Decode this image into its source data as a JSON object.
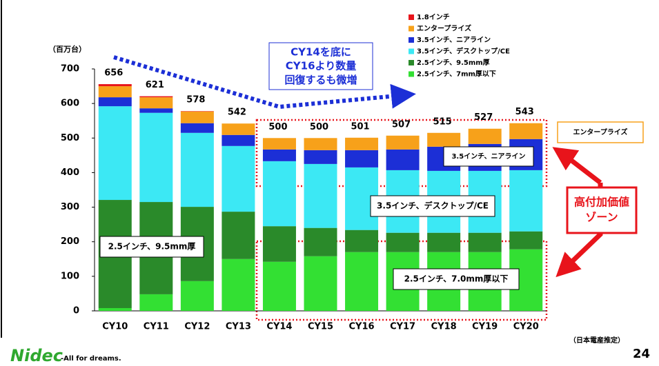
{
  "chart_data": {
    "type": "bar",
    "stacked": true,
    "y_label": "（百万台）",
    "categories": [
      "CY10",
      "CY11",
      "CY12",
      "CY13",
      "CY14",
      "CY15",
      "CY16",
      "CY17",
      "CY18",
      "CY19",
      "CY20"
    ],
    "series": [
      {
        "name": "2.5インチ、7mm厚以下",
        "color": "#33e033",
        "values": [
          8,
          48,
          86,
          150,
          142,
          158,
          170,
          170,
          170,
          170,
          178
        ]
      },
      {
        "name": "2.5インチ、9.5mm厚",
        "color": "#2a8a2a",
        "values": [
          313,
          267,
          215,
          137,
          103,
          82,
          64,
          56,
          56,
          56,
          52
        ]
      },
      {
        "name": "3.5インチ、デスクトップ/CE",
        "color": "#3ce8f4",
        "values": [
          271,
          258,
          214,
          190,
          188,
          185,
          181,
          181,
          179,
          179,
          177
        ]
      },
      {
        "name": "3.5インチ、ニアライン",
        "color": "#1c2fd6",
        "values": [
          26,
          13,
          28,
          32,
          34,
          40,
          50,
          60,
          70,
          78,
          90
        ]
      },
      {
        "name": "エンタープライズ",
        "color": "#f7a11a",
        "values": [
          32,
          32,
          34,
          33,
          33,
          35,
          36,
          40,
          40,
          44,
          46
        ]
      },
      {
        "name": "1.8インチ",
        "color": "#e8141b",
        "values": [
          6,
          3,
          1,
          0,
          0,
          0,
          0,
          0,
          0,
          0,
          0
        ]
      }
    ],
    "totals": [
      656,
      621,
      578,
      542,
      500,
      500,
      501,
      507,
      515,
      527,
      543
    ],
    "ylim": [
      0,
      700
    ],
    "yticks": [
      0,
      100,
      200,
      300,
      400,
      500,
      600,
      700
    ],
    "annotations": [
      {
        "lines": [
          "CY14を底に",
          "CY16より数量",
          "回復するも微増"
        ]
      },
      {
        "lines": [
          "エンタープライズ"
        ]
      },
      {
        "lines": [
          "3.5インチ、ニアライン"
        ]
      },
      {
        "lines": [
          "3.5インチ、デスクトップ/CE"
        ]
      },
      {
        "lines": [
          "2.5インチ、9.5mm厚"
        ]
      },
      {
        "lines": [
          "2.5インチ、7.0mm厚以下"
        ]
      },
      {
        "lines": [
          "高付加価値",
          "ゾーン"
        ]
      }
    ],
    "source": "（日本電産推定）",
    "page": "24",
    "logo": "Nidec",
    "tagline": "-All for dreams."
  }
}
